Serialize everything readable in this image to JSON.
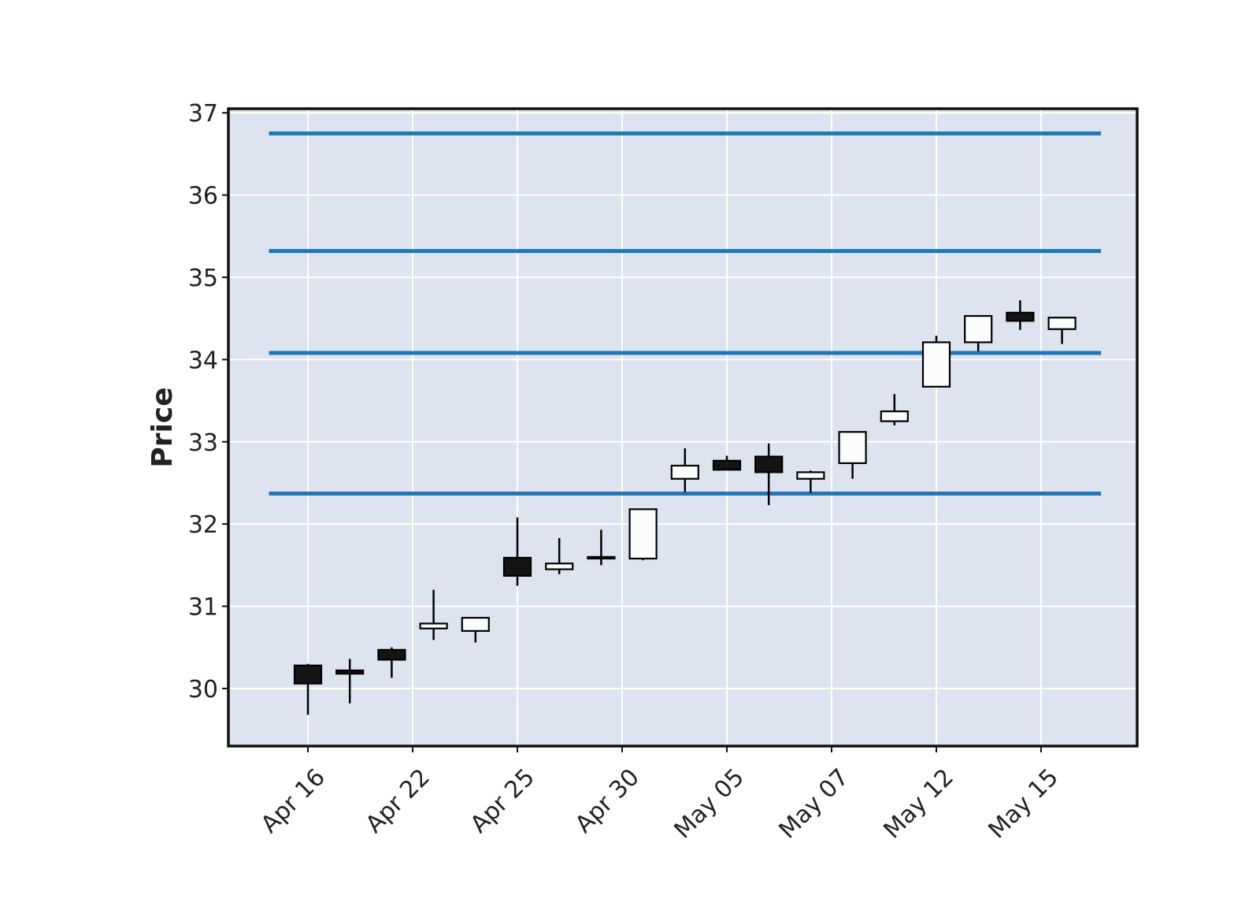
{
  "chart_data": {
    "type": "candlestick",
    "ylabel": "Price",
    "xlabel": "",
    "title": "",
    "ylim": [
      29.3,
      37.05
    ],
    "yticks": [
      30,
      31,
      32,
      33,
      34,
      35,
      36,
      37
    ],
    "xtick_labels": [
      "Apr 16",
      "Apr 22",
      "Apr 25",
      "Apr 30",
      "May 05",
      "May 07",
      "May 12",
      "May 15"
    ],
    "xtick_indices": [
      0,
      2.5,
      5,
      7.5,
      10,
      12.5,
      15,
      17.5
    ],
    "grid": true,
    "colors": {
      "plot_background": "#dde3ef",
      "grid": "#ffffff",
      "up_candle": "#fbfcfe",
      "down_candle": "#141414",
      "edge": "#000000",
      "hlines": "#1f77b4"
    },
    "hlines": [
      36.75,
      35.32,
      34.08,
      32.37
    ],
    "candles": [
      {
        "open": 30.28,
        "high": 30.3,
        "low": 29.68,
        "close": 30.06
      },
      {
        "open": 30.22,
        "high": 30.36,
        "low": 29.82,
        "close": 30.18
      },
      {
        "open": 30.47,
        "high": 30.5,
        "low": 30.13,
        "close": 30.35
      },
      {
        "open": 30.73,
        "high": 31.2,
        "low": 30.59,
        "close": 30.79
      },
      {
        "open": 30.7,
        "high": 30.86,
        "low": 30.56,
        "close": 30.86
      },
      {
        "open": 31.59,
        "high": 32.08,
        "low": 31.25,
        "close": 31.37
      },
      {
        "open": 31.45,
        "high": 31.83,
        "low": 31.39,
        "close": 31.52
      },
      {
        "open": 31.58,
        "high": 31.93,
        "low": 31.5,
        "close": 31.6
      },
      {
        "open": 31.58,
        "high": 32.18,
        "low": 31.56,
        "close": 32.18
      },
      {
        "open": 32.55,
        "high": 32.92,
        "low": 32.39,
        "close": 32.71
      },
      {
        "open": 32.77,
        "high": 32.83,
        "low": 32.66,
        "close": 32.66
      },
      {
        "open": 32.82,
        "high": 32.98,
        "low": 32.23,
        "close": 32.63
      },
      {
        "open": 32.55,
        "high": 32.65,
        "low": 32.38,
        "close": 32.63
      },
      {
        "open": 32.74,
        "high": 33.12,
        "low": 32.55,
        "close": 33.12
      },
      {
        "open": 33.25,
        "high": 33.58,
        "low": 33.2,
        "close": 33.37
      },
      {
        "open": 33.67,
        "high": 34.29,
        "low": 33.67,
        "close": 34.21
      },
      {
        "open": 34.21,
        "high": 34.53,
        "low": 34.1,
        "close": 34.53
      },
      {
        "open": 34.57,
        "high": 34.72,
        "low": 34.36,
        "close": 34.47
      },
      {
        "open": 34.37,
        "high": 34.51,
        "low": 34.19,
        "close": 34.51
      }
    ]
  }
}
